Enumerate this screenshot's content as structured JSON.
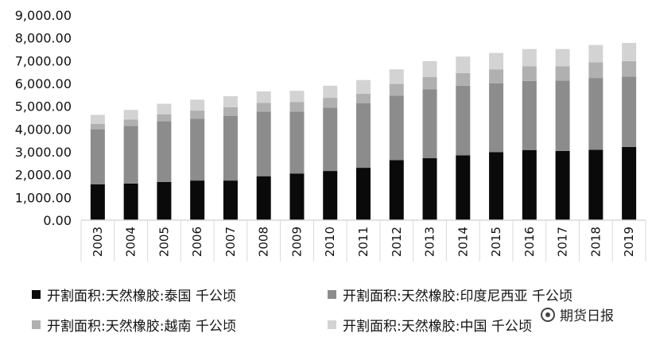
{
  "colors": {
    "thailand": "#0a0a0a",
    "indonesia": "#8c8c8c",
    "vietnam": "#b0b0b0",
    "china": "#d3d3d3",
    "axis": "#d9d9d9"
  },
  "chart_data": {
    "type": "bar",
    "stacked": true,
    "title": "",
    "xlabel": "",
    "ylabel": "",
    "ylim": [
      0,
      9000
    ],
    "yticks": [
      "0.00",
      "1,000.00",
      "2,000.00",
      "3,000.00",
      "4,000.00",
      "5,000.00",
      "6,000.00",
      "7,000.00",
      "8,000.00",
      "9,000.00"
    ],
    "ytick_values": [
      0,
      1000,
      2000,
      3000,
      4000,
      5000,
      6000,
      7000,
      8000,
      9000
    ],
    "categories": [
      "2003",
      "2004",
      "2005",
      "2006",
      "2007",
      "2008",
      "2009",
      "2010",
      "2011",
      "2012",
      "2013",
      "2014",
      "2015",
      "2016",
      "2017",
      "2018",
      "2019"
    ],
    "legend_position": "bottom",
    "grid": false,
    "series": [
      {
        "name": "开割面积:天然橡胶:泰国 千公顷",
        "color_key": "thailand",
        "values": [
          1570,
          1610,
          1680,
          1740,
          1740,
          1930,
          2050,
          2160,
          2300,
          2640,
          2720,
          2850,
          2990,
          3080,
          3040,
          3090,
          3210
        ]
      },
      {
        "name": "开割面积:天然橡胶:印度尼西亚 千公顷",
        "color_key": "indonesia",
        "values": [
          2420,
          2530,
          2660,
          2710,
          2830,
          2840,
          2710,
          2780,
          2840,
          2830,
          3030,
          3050,
          3020,
          3030,
          3090,
          3150,
          3090
        ]
      },
      {
        "name": "开割面积:天然橡胶:越南 千公顷",
        "color_key": "vietnam",
        "values": [
          230,
          280,
          310,
          360,
          390,
          380,
          420,
          430,
          410,
          510,
          540,
          560,
          600,
          640,
          630,
          690,
          680
        ]
      },
      {
        "name": "开割面积:天然橡胶:中国 千公顷",
        "color_key": "china",
        "values": [
          400,
          420,
          460,
          480,
          480,
          500,
          500,
          530,
          600,
          640,
          690,
          720,
          730,
          760,
          750,
          760,
          800
        ]
      }
    ]
  },
  "watermark": {
    "icon": "wechat-icon",
    "text": "期货日报"
  }
}
